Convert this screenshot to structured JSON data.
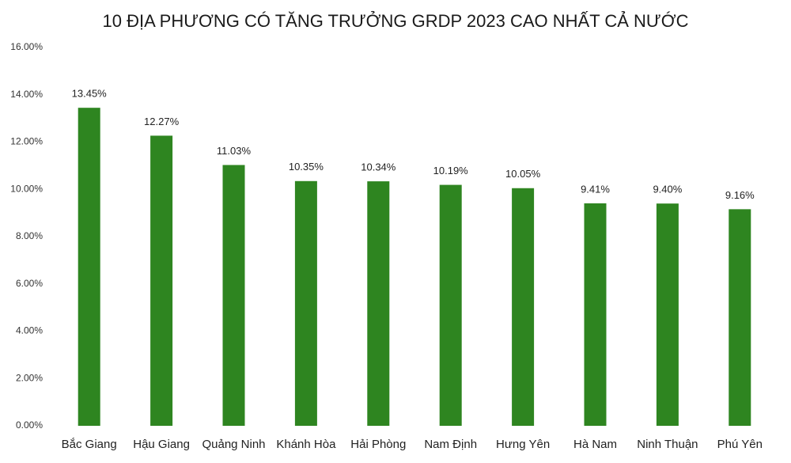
{
  "chart_data": {
    "type": "bar",
    "title": "10 ĐỊA PHƯƠNG CÓ TĂNG TRƯỞNG GRDP 2023 CAO NHẤT CẢ NƯỚC",
    "categories": [
      "Bắc Giang",
      "Hậu Giang",
      "Quảng Ninh",
      "Khánh Hòa",
      "Hải Phòng",
      "Nam Định",
      "Hưng Yên",
      "Hà Nam",
      "Ninh Thuận",
      "Phú Yên"
    ],
    "values": [
      13.45,
      12.27,
      11.03,
      10.35,
      10.34,
      10.19,
      10.05,
      9.41,
      9.4,
      9.16
    ],
    "value_labels": [
      "13.45%",
      "12.27%",
      "11.03%",
      "10.35%",
      "10.34%",
      "10.19%",
      "10.05%",
      "9.41%",
      "9.40%",
      "9.16%"
    ],
    "color": "#2e8520",
    "ylim": [
      0,
      16
    ],
    "yticks": [
      {
        "value": 0,
        "label": "0.00%"
      },
      {
        "value": 2,
        "label": "2.00%"
      },
      {
        "value": 4,
        "label": "4.00%"
      },
      {
        "value": 6,
        "label": "6.00%"
      },
      {
        "value": 8,
        "label": "8.00%"
      },
      {
        "value": 10,
        "label": "10.00%"
      },
      {
        "value": 12,
        "label": "12.00%"
      },
      {
        "value": 14,
        "label": "14.00%"
      },
      {
        "value": 16,
        "label": "16.00%"
      }
    ],
    "grid": false
  }
}
